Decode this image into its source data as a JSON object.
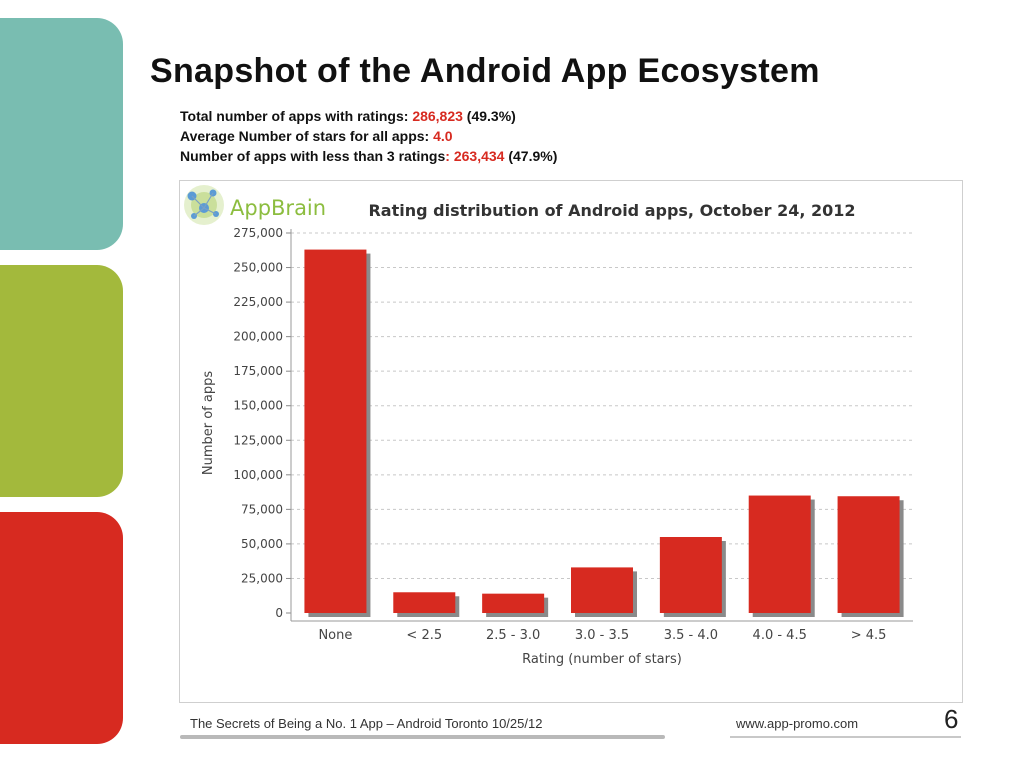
{
  "slide": {
    "title": "Snapshot of the Android App Ecosystem",
    "stats": [
      {
        "label": "Total number of apps with ratings: ",
        "value": "286,823",
        "suffix": "  (49.3%)"
      },
      {
        "label": "Average Number of stars for all apps: ",
        "value": "4.0",
        "suffix": ""
      },
      {
        "label": "Number of apps with less than 3 ratings",
        "value": ": 263,434",
        "suffix": " (47.9%)"
      }
    ],
    "footer_text": "The Secrets of Being a No. 1 App – Android Toronto   10/25/12",
    "footer_url": "www.app-promo.com",
    "page_number": "6",
    "tile_colors": [
      "#79bdb1",
      "#a3b93c",
      "#d72a20"
    ],
    "logo_text": "AppBrain"
  },
  "chart_data": {
    "type": "bar",
    "title": "Rating distribution of Android apps, October 24, 2012",
    "xlabel": "Rating (number of stars)",
    "ylabel": "Number of apps",
    "categories": [
      "None",
      "< 2.5",
      "2.5 - 3.0",
      "3.0 - 3.5",
      "3.5 - 4.0",
      "4.0 - 4.5",
      "> 4.5"
    ],
    "values": [
      263000,
      15000,
      14000,
      33000,
      55000,
      85000,
      84500
    ],
    "ylim": [
      0,
      275000
    ],
    "yticks": [
      0,
      25000,
      50000,
      75000,
      100000,
      125000,
      150000,
      175000,
      200000,
      225000,
      250000,
      275000
    ],
    "grid": true,
    "legend": "none",
    "bar_color": "#d72a20"
  }
}
